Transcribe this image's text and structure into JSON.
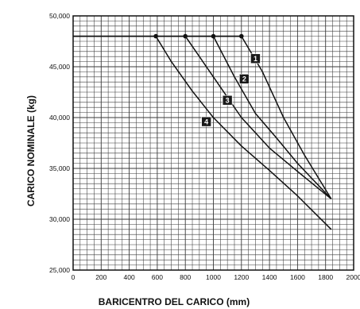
{
  "chart_data": {
    "type": "line",
    "title": "",
    "xlabel": "BARICENTRO DEL CARICO (mm)",
    "ylabel": "CARICO NOMINALE (kg)",
    "xlim": [
      0,
      2000
    ],
    "ylim": [
      25000,
      50000
    ],
    "x_ticks": [
      "0",
      "200",
      "400",
      "600",
      "800",
      "1000",
      "1200",
      "1400",
      "1600",
      "1800",
      "2000"
    ],
    "y_ticks": [
      "25,000",
      "30,000",
      "35,000",
      "40,000",
      "45,000",
      "50,000"
    ],
    "grid": true,
    "legend": "none",
    "line_color": "#111111",
    "grid_color": "#3a3a3a",
    "plateau": {
      "x": [
        0,
        1200
      ],
      "y": 48000
    },
    "series": [
      {
        "name": "1",
        "points": [
          [
            1200,
            48000
          ],
          [
            1350,
            44500
          ],
          [
            1500,
            40000
          ],
          [
            1650,
            36300
          ],
          [
            1840,
            32000
          ]
        ]
      },
      {
        "name": "2",
        "points": [
          [
            1000,
            48000
          ],
          [
            1150,
            44000
          ],
          [
            1300,
            40400
          ],
          [
            1450,
            38000
          ],
          [
            1600,
            35500
          ],
          [
            1840,
            32000
          ]
        ]
      },
      {
        "name": "3",
        "points": [
          [
            800,
            48000
          ],
          [
            1000,
            44000
          ],
          [
            1200,
            40000
          ],
          [
            1400,
            37000
          ],
          [
            1600,
            34700
          ],
          [
            1840,
            32000
          ]
        ]
      },
      {
        "name": "4",
        "points": [
          [
            590,
            48000
          ],
          [
            700,
            45500
          ],
          [
            850,
            42600
          ],
          [
            1000,
            40000
          ],
          [
            1200,
            37200
          ],
          [
            1400,
            34800
          ],
          [
            1600,
            32300
          ],
          [
            1840,
            29000
          ]
        ]
      }
    ],
    "markers": [
      {
        "label": "1",
        "x": 1300,
        "y": 45800
      },
      {
        "label": "2",
        "x": 1220,
        "y": 43800
      },
      {
        "label": "3",
        "x": 1100,
        "y": 41700
      },
      {
        "label": "4",
        "x": 950,
        "y": 39600
      }
    ]
  }
}
